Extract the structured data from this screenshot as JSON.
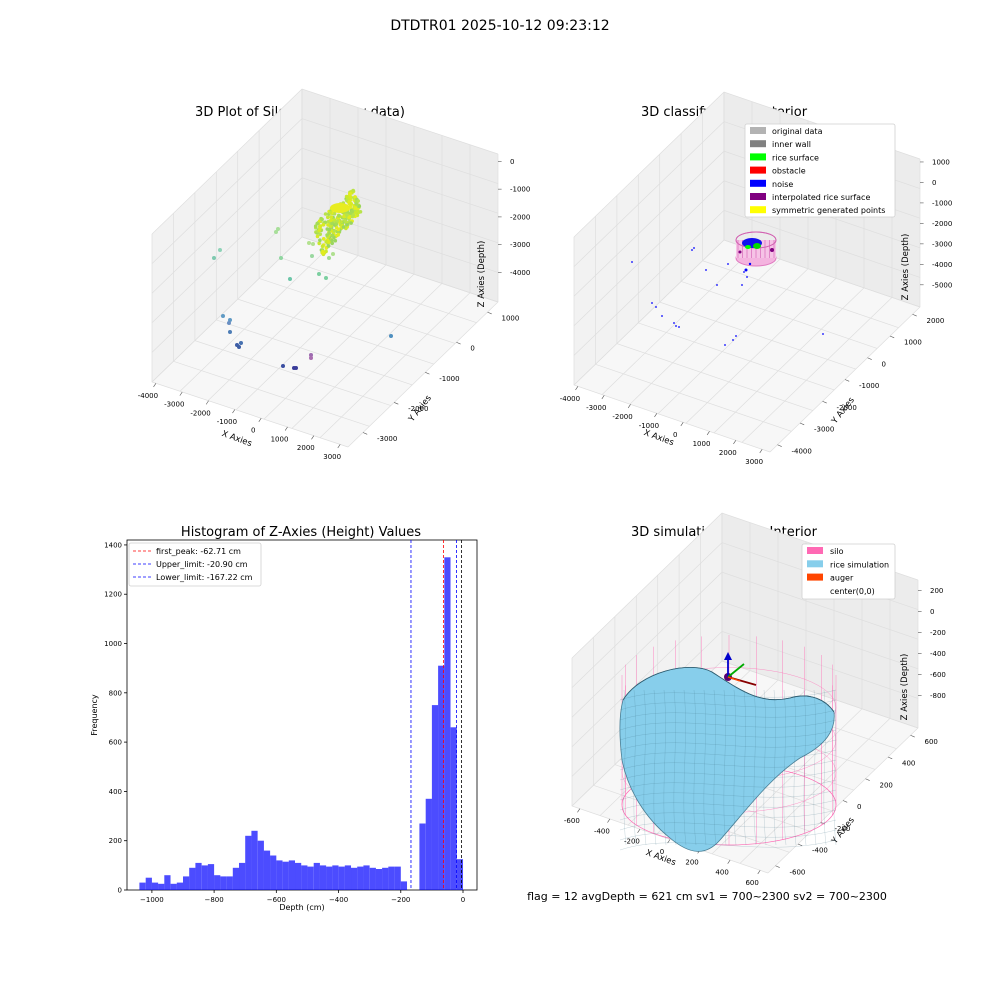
{
  "figure": {
    "suptitle": "DTDTR01 2025-10-12 09:23:12",
    "status_line": "flag = 12   avgDepth = 621 cm  sv1 = 700~2300  sv2 = 700~2300"
  },
  "chart_data": [
    {
      "type": "scatter",
      "title": "3D Plot of Silo Interior(row data)",
      "xlabel": "X Axies",
      "ylabel": "Y Axies",
      "zlabel": "Z Axies (Depth)",
      "xticks": [
        "-4000",
        "-3000",
        "-2000",
        "-1000",
        "0",
        "1000",
        "2000",
        "3000"
      ],
      "yticks": [
        "-3000",
        "-2000",
        "-1000",
        "0",
        "1000"
      ],
      "zticks": [
        "0",
        "-1000",
        "-2000",
        "-3000",
        "-4000"
      ]
    },
    {
      "type": "scatter",
      "title": "3D classify of Silo Interior",
      "xlabel": "X Axies",
      "ylabel": "Y Axies",
      "zlabel": "Z Axies (Depth)",
      "xticks": [
        "-4000",
        "-3000",
        "-2000",
        "-1000",
        "0",
        "1000",
        "2000",
        "3000"
      ],
      "yticks": [
        "-4000",
        "-3000",
        "-2000",
        "-1000",
        "0",
        "1000",
        "2000"
      ],
      "zticks": [
        "1000",
        "0",
        "-1000",
        "-2000",
        "-3000",
        "-4000",
        "-5000"
      ],
      "legend": [
        {
          "label": "original data",
          "color": "#b3b3b3"
        },
        {
          "label": "inner wall",
          "color": "#808080"
        },
        {
          "label": "rice surface",
          "color": "#00ff00"
        },
        {
          "label": "obstacle",
          "color": "#ff0000"
        },
        {
          "label": "noise",
          "color": "#0000ff"
        },
        {
          "label": "interpolated rice surface",
          "color": "#800080"
        },
        {
          "label": "symmetric generated points",
          "color": "#ffff00"
        }
      ]
    },
    {
      "type": "bar",
      "title": "Histogram of Z-Axies (Height) Values",
      "xlabel": "Depth (cm)",
      "ylabel": "Frequency",
      "xlim": [
        -1080,
        45
      ],
      "ylim": [
        0,
        1420
      ],
      "xticks": [
        -1000,
        -800,
        -600,
        -400,
        -200,
        0
      ],
      "yticks": [
        0,
        200,
        400,
        600,
        800,
        1000,
        1200,
        1400
      ],
      "bin_width": 20,
      "bin_left_edges": [
        -1040,
        -1020,
        -1000,
        -980,
        -960,
        -940,
        -920,
        -900,
        -880,
        -860,
        -840,
        -820,
        -800,
        -780,
        -760,
        -740,
        -720,
        -700,
        -680,
        -660,
        -640,
        -620,
        -600,
        -580,
        -560,
        -540,
        -520,
        -500,
        -480,
        -460,
        -440,
        -420,
        -400,
        -380,
        -360,
        -340,
        -320,
        -300,
        -280,
        -260,
        -240,
        -220,
        -200,
        -180,
        -160,
        -140,
        -120,
        -100,
        -80,
        -60,
        -40,
        -20
      ],
      "values": [
        30,
        50,
        30,
        25,
        60,
        25,
        30,
        55,
        90,
        110,
        100,
        105,
        60,
        55,
        55,
        90,
        110,
        220,
        240,
        200,
        160,
        140,
        120,
        115,
        120,
        110,
        100,
        95,
        110,
        100,
        95,
        100,
        95,
        100,
        90,
        95,
        100,
        90,
        85,
        90,
        95,
        95,
        35,
        0,
        0,
        270,
        370,
        750,
        910,
        1350,
        660,
        125
      ],
      "bar_color": "#0000ff",
      "vlines": [
        {
          "label": "first_peak: -62.71 cm",
          "x": -62.71,
          "color": "#ff0000"
        },
        {
          "label": "Upper_limit: -20.90 cm",
          "x": -20.9,
          "color": "#0000ff"
        },
        {
          "label": "Lower_limit: -167.22 cm",
          "x": -167.22,
          "color": "#0000ff"
        }
      ],
      "extra_vline": {
        "x": -5,
        "color": "#000000"
      }
    },
    {
      "type": "scatter",
      "title": "3D simulation of Silo Interior",
      "xlabel": "X Axies",
      "ylabel": "Y Axies",
      "zlabel": "Z Axies (Depth)",
      "xticks": [
        "-600",
        "-400",
        "-200",
        "0",
        "200",
        "400",
        "600"
      ],
      "yticks": [
        "-600",
        "-400",
        "-200",
        "0",
        "200",
        "400",
        "600"
      ],
      "zticks": [
        "200",
        "0",
        "-200",
        "-400",
        "-600",
        "-800"
      ],
      "legend": [
        {
          "label": "silo",
          "color": "#ff69b4"
        },
        {
          "label": "rice simulation",
          "color": "#87ceeb"
        },
        {
          "label": "auger",
          "color": "#ff4500"
        },
        {
          "label": "center(0,0)",
          "color": "#ffffff"
        }
      ]
    }
  ]
}
